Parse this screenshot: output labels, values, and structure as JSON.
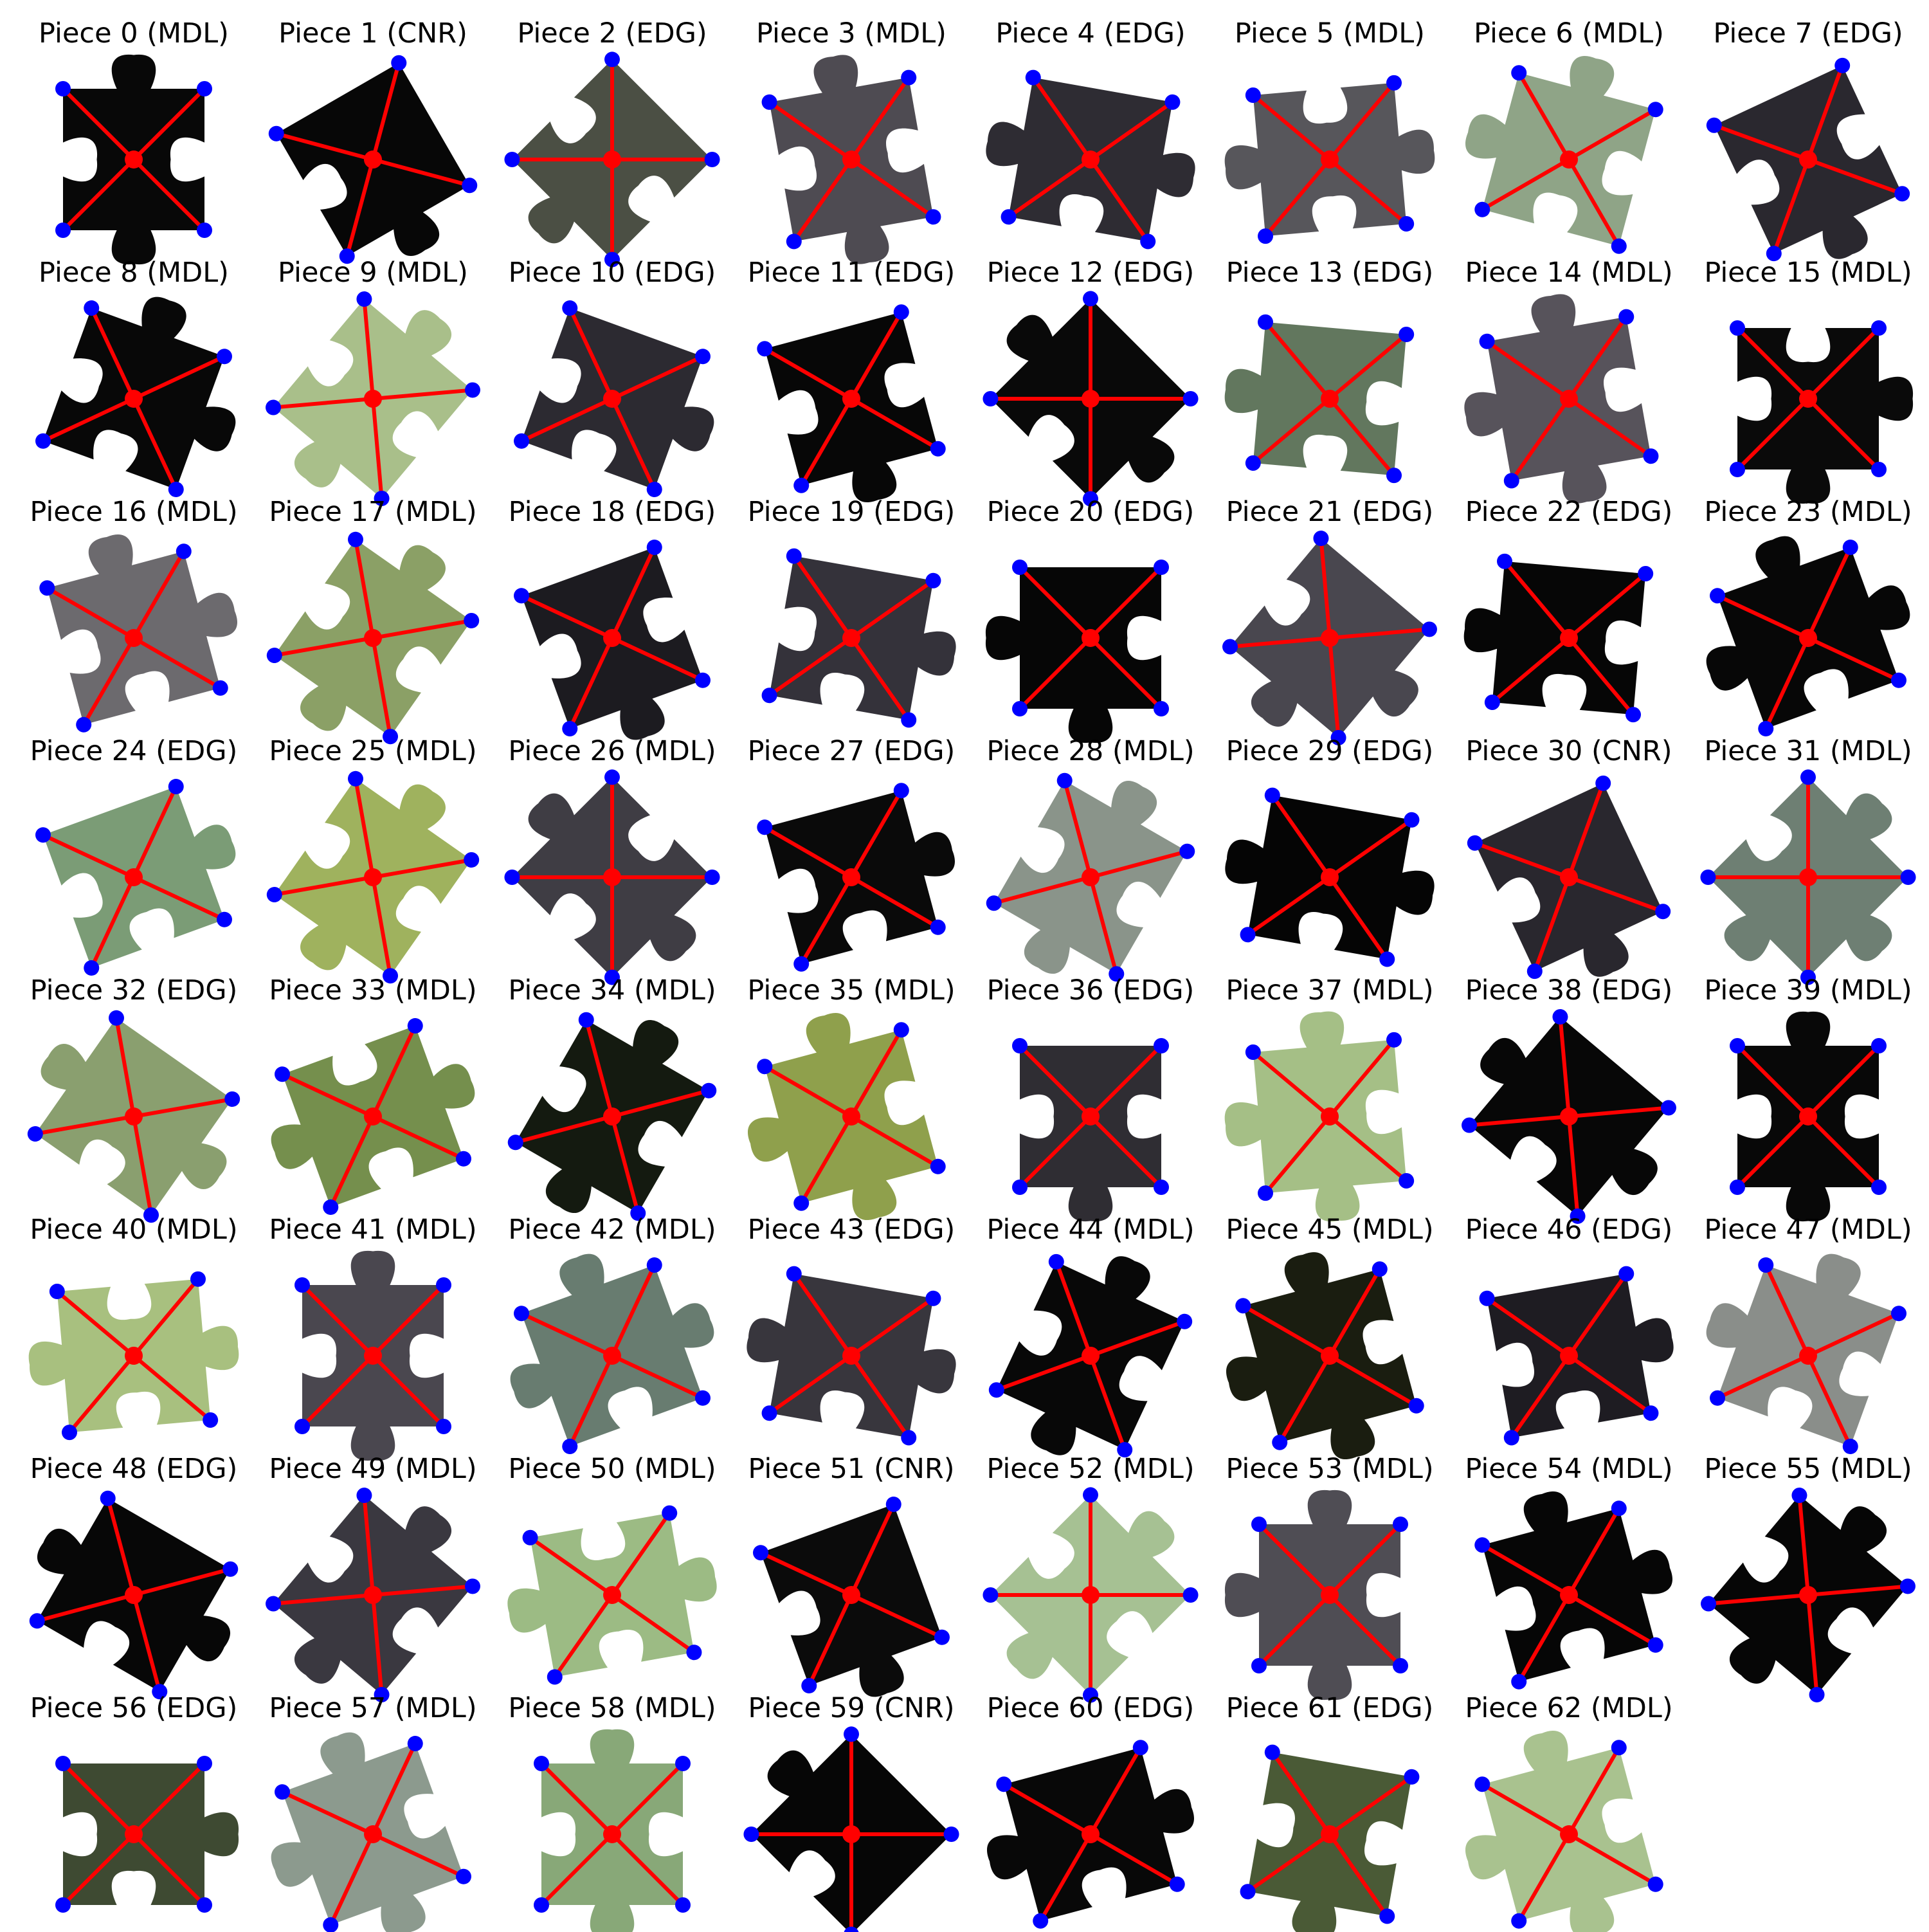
{
  "figure": {
    "pieces": [
      {
        "label": "Piece 0 (MDL)",
        "color": "#080808",
        "rot": 0,
        "tabs": [
          1,
          -1,
          1,
          -1
        ]
      },
      {
        "label": "Piece 1 (CNR)",
        "color": "#070707",
        "rot": -30,
        "tabs": [
          0,
          0,
          1,
          -1
        ]
      },
      {
        "label": "Piece 2 (EDG)",
        "color": "#4b4f44",
        "rot": 45,
        "tabs": [
          0,
          -1,
          1,
          -1
        ]
      },
      {
        "label": "Piece 3 (MDL)",
        "color": "#4e4b52",
        "rot": -10,
        "tabs": [
          1,
          -1,
          1,
          -1
        ]
      },
      {
        "label": "Piece 4 (EDG)",
        "color": "#2e2c33",
        "rot": 10,
        "tabs": [
          0,
          1,
          -1,
          1
        ]
      },
      {
        "label": "Piece 5 (MDL)",
        "color": "#57565b",
        "rot": -5,
        "tabs": [
          -1,
          1,
          -1,
          1
        ]
      },
      {
        "label": "Piece 6 (MDL)",
        "color": "#8fa487",
        "rot": 15,
        "tabs": [
          1,
          -1,
          -1,
          1
        ]
      },
      {
        "label": "Piece 7 (EDG)",
        "color": "#2a282f",
        "rot": -25,
        "tabs": [
          0,
          -1,
          1,
          -1
        ]
      },
      {
        "label": "Piece 8 (MDL)",
        "color": "#080808",
        "rot": 20,
        "tabs": [
          1,
          1,
          -1,
          -1
        ]
      },
      {
        "label": "Piece 9 (MDL)",
        "color": "#a9bf8a",
        "rot": 40,
        "tabs": [
          1,
          -1,
          1,
          -1
        ]
      },
      {
        "label": "Piece 10 (EDG)",
        "color": "#2c2a31",
        "rot": 20,
        "tabs": [
          0,
          1,
          -1,
          -1
        ]
      },
      {
        "label": "Piece 11 (EDG)",
        "color": "#070707",
        "rot": -15,
        "tabs": [
          0,
          -1,
          1,
          -1
        ]
      },
      {
        "label": "Piece 12 (EDG)",
        "color": "#090909",
        "rot": 45,
        "tabs": [
          0,
          1,
          -1,
          1
        ]
      },
      {
        "label": "Piece 13 (EDG)",
        "color": "#62775e",
        "rot": 5,
        "tabs": [
          0,
          -1,
          -1,
          1
        ]
      },
      {
        "label": "Piece 14 (MDL)",
        "color": "#57535b",
        "rot": -10,
        "tabs": [
          1,
          -1,
          1,
          1
        ]
      },
      {
        "label": "Piece 15 (MDL)",
        "color": "#0a0a0a",
        "rot": 0,
        "tabs": [
          -1,
          1,
          1,
          -1
        ]
      },
      {
        "label": "Piece 16 (MDL)",
        "color": "#6c6a6e",
        "rot": -15,
        "tabs": [
          1,
          1,
          -1,
          -1
        ]
      },
      {
        "label": "Piece 17 (MDL)",
        "color": "#8ba066",
        "rot": 35,
        "tabs": [
          1,
          -1,
          1,
          -1
        ]
      },
      {
        "label": "Piece 18 (EDG)",
        "color": "#1c1b20",
        "rot": -20,
        "tabs": [
          0,
          -1,
          1,
          -1
        ]
      },
      {
        "label": "Piece 19 (EDG)",
        "color": "#34323a",
        "rot": 10,
        "tabs": [
          0,
          1,
          -1,
          -1
        ]
      },
      {
        "label": "Piece 20 (EDG)",
        "color": "#060606",
        "rot": 0,
        "tabs": [
          0,
          -1,
          1,
          1
        ]
      },
      {
        "label": "Piece 21 (EDG)",
        "color": "#49474f",
        "rot": 40,
        "tabs": [
          0,
          1,
          1,
          -1
        ]
      },
      {
        "label": "Piece 22 (EDG)",
        "color": "#060606",
        "rot": 5,
        "tabs": [
          0,
          -1,
          -1,
          1
        ]
      },
      {
        "label": "Piece 23 (MDL)",
        "color": "#070707",
        "rot": -20,
        "tabs": [
          1,
          1,
          -1,
          1
        ]
      },
      {
        "label": "Piece 24 (EDG)",
        "color": "#7b9c76",
        "rot": -20,
        "tabs": [
          0,
          1,
          -1,
          -1
        ]
      },
      {
        "label": "Piece 25 (MDL)",
        "color": "#9fb25e",
        "rot": 35,
        "tabs": [
          1,
          -1,
          1,
          -1
        ]
      },
      {
        "label": "Piece 26 (MDL)",
        "color": "#3f3d44",
        "rot": 45,
        "tabs": [
          -1,
          1,
          -1,
          1
        ]
      },
      {
        "label": "Piece 27 (EDG)",
        "color": "#0a0a0a",
        "rot": -15,
        "tabs": [
          0,
          1,
          -1,
          -1
        ]
      },
      {
        "label": "Piece 28 (MDL)",
        "color": "#8a948a",
        "rot": 30,
        "tabs": [
          1,
          -1,
          1,
          -1
        ]
      },
      {
        "label": "Piece 29 (EDG)",
        "color": "#050505",
        "rot": 10,
        "tabs": [
          0,
          1,
          -1,
          1
        ]
      },
      {
        "label": "Piece 30 (CNR)",
        "color": "#29272e",
        "rot": -25,
        "tabs": [
          0,
          0,
          1,
          -1
        ]
      },
      {
        "label": "Piece 31 (MDL)",
        "color": "#6e7f73",
        "rot": 45,
        "tabs": [
          1,
          1,
          1,
          -1
        ]
      },
      {
        "label": "Piece 32 (EDG)",
        "color": "#8a9f6f",
        "rot": 35,
        "tabs": [
          0,
          1,
          -1,
          1
        ]
      },
      {
        "label": "Piece 33 (MDL)",
        "color": "#758f4d",
        "rot": -20,
        "tabs": [
          -1,
          1,
          -1,
          1
        ]
      },
      {
        "label": "Piece 34 (MDL)",
        "color": "#141a10",
        "rot": 30,
        "tabs": [
          1,
          -1,
          1,
          -1
        ]
      },
      {
        "label": "Piece 35 (MDL)",
        "color": "#8fa04c",
        "rot": -15,
        "tabs": [
          1,
          -1,
          1,
          1
        ]
      },
      {
        "label": "Piece 36 (EDG)",
        "color": "#2f2d33",
        "rot": 0,
        "tabs": [
          0,
          -1,
          1,
          -1
        ]
      },
      {
        "label": "Piece 37 (MDL)",
        "color": "#a5bf86",
        "rot": -5,
        "tabs": [
          1,
          -1,
          1,
          1
        ]
      },
      {
        "label": "Piece 38 (EDG)",
        "color": "#070707",
        "rot": 40,
        "tabs": [
          0,
          1,
          -1,
          1
        ]
      },
      {
        "label": "Piece 39 (MDL)",
        "color": "#080808",
        "rot": 0,
        "tabs": [
          1,
          -1,
          1,
          -1
        ]
      },
      {
        "label": "Piece 40 (MDL)",
        "color": "#a8c07f",
        "rot": -5,
        "tabs": [
          -1,
          1,
          -1,
          1
        ]
      },
      {
        "label": "Piece 41 (MDL)",
        "color": "#4a474f",
        "rot": 0,
        "tabs": [
          1,
          -1,
          1,
          -1
        ]
      },
      {
        "label": "Piece 42 (MDL)",
        "color": "#687c70",
        "rot": -20,
        "tabs": [
          1,
          1,
          -1,
          1
        ]
      },
      {
        "label": "Piece 43 (EDG)",
        "color": "#38363d",
        "rot": 10,
        "tabs": [
          0,
          1,
          -1,
          1
        ]
      },
      {
        "label": "Piece 44 (MDL)",
        "color": "#080808",
        "rot": 25,
        "tabs": [
          1,
          -1,
          1,
          -1
        ]
      },
      {
        "label": "Piece 45 (MDL)",
        "color": "#1a1d10",
        "rot": -15,
        "tabs": [
          1,
          -1,
          1,
          1
        ]
      },
      {
        "label": "Piece 46 (EDG)",
        "color": "#1e1c22",
        "rot": -10,
        "tabs": [
          0,
          1,
          -1,
          -1
        ]
      },
      {
        "label": "Piece 47 (MDL)",
        "color": "#8a8e8a",
        "rot": 20,
        "tabs": [
          1,
          -1,
          -1,
          1
        ]
      },
      {
        "label": "Piece 48 (EDG)",
        "color": "#070707",
        "rot": 30,
        "tabs": [
          0,
          1,
          -1,
          1
        ]
      },
      {
        "label": "Piece 49 (MDL)",
        "color": "#3a3840",
        "rot": 40,
        "tabs": [
          1,
          -1,
          1,
          -1
        ]
      },
      {
        "label": "Piece 50 (MDL)",
        "color": "#9cbb84",
        "rot": -10,
        "tabs": [
          -1,
          1,
          -1,
          1
        ]
      },
      {
        "label": "Piece 51 (CNR)",
        "color": "#0b0b0b",
        "rot": -20,
        "tabs": [
          0,
          0,
          1,
          -1
        ]
      },
      {
        "label": "Piece 52 (MDL)",
        "color": "#a6c193",
        "rot": 45,
        "tabs": [
          1,
          -1,
          1,
          -1
        ]
      },
      {
        "label": "Piece 53 (MDL)",
        "color": "#4f4d54",
        "rot": 0,
        "tabs": [
          1,
          -1,
          1,
          1
        ]
      },
      {
        "label": "Piece 54 (MDL)",
        "color": "#060606",
        "rot": -15,
        "tabs": [
          1,
          1,
          -1,
          -1
        ]
      },
      {
        "label": "Piece 55 (MDL)",
        "color": "#060606",
        "rot": 40,
        "tabs": [
          1,
          -1,
          1,
          -1
        ]
      },
      {
        "label": "Piece 56 (EDG)",
        "color": "#3e4a32",
        "rot": 0,
        "tabs": [
          0,
          1,
          -1,
          -1
        ]
      },
      {
        "label": "Piece 57 (MDL)",
        "color": "#8c9a8e",
        "rot": -20,
        "tabs": [
          1,
          -1,
          1,
          1
        ]
      },
      {
        "label": "Piece 58 (MDL)",
        "color": "#88a878",
        "rot": 0,
        "tabs": [
          1,
          -1,
          1,
          -1
        ]
      },
      {
        "label": "Piece 59 (CNR)",
        "color": "#060606",
        "rot": 45,
        "tabs": [
          0,
          0,
          -1,
          1
        ]
      },
      {
        "label": "Piece 60 (EDG)",
        "color": "#080808",
        "rot": -15,
        "tabs": [
          0,
          1,
          -1,
          1
        ]
      },
      {
        "label": "Piece 61 (EDG)",
        "color": "#4a5a36",
        "rot": 10,
        "tabs": [
          0,
          -1,
          1,
          -1
        ]
      },
      {
        "label": "Piece 62 (MDL)",
        "color": "#a9c28f",
        "rot": -15,
        "tabs": [
          1,
          -1,
          1,
          1
        ]
      }
    ],
    "marker_colors": {
      "centroid": "#ff0000",
      "corner": "#0000ff",
      "line": "#ff0000"
    }
  }
}
